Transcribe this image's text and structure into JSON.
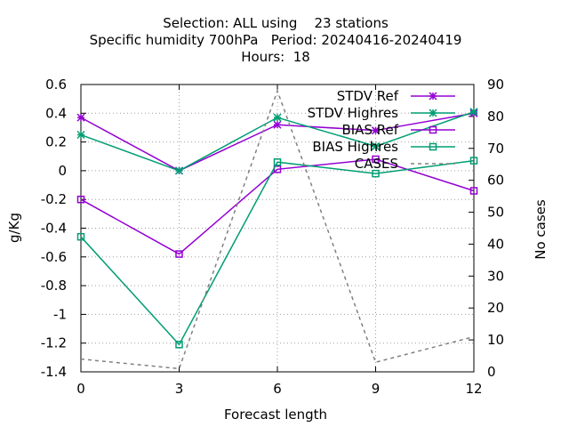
{
  "chart_data": {
    "type": "line",
    "title_lines": [
      "Selection: ALL using    23 stations",
      "Specific humidity 700hPa   Period: 20240416-20240419",
      "Hours:  18"
    ],
    "xlabel": "Forecast length",
    "ylabel": "g/Kg",
    "y2label": "No cases",
    "x": [
      0,
      3,
      6,
      9,
      12
    ],
    "x_ticks": [
      "0",
      "3",
      "6",
      "9",
      "12"
    ],
    "ylim": [
      -1.4,
      0.6
    ],
    "y_ticks": [
      "-1.4",
      "-1.2",
      "-1",
      "-0.8",
      "-0.6",
      "-0.4",
      "-0.2",
      "0",
      "0.2",
      "0.4",
      "0.6"
    ],
    "y2lim": [
      0,
      90
    ],
    "y2_ticks": [
      "0",
      "10",
      "20",
      "30",
      "40",
      "50",
      "60",
      "70",
      "80",
      "90"
    ],
    "grid": true,
    "legend_position": "top-right",
    "series": [
      {
        "name": "STDV Ref",
        "axis": "y1",
        "marker": "star",
        "color": "#9400d3",
        "values": [
          0.37,
          0.0,
          0.32,
          0.28,
          0.4
        ]
      },
      {
        "name": "STDV Highres",
        "axis": "y1",
        "marker": "star",
        "color": "#009e73",
        "values": [
          0.25,
          0.0,
          0.37,
          0.17,
          0.41
        ]
      },
      {
        "name": "BIAS Ref",
        "axis": "y1",
        "marker": "square",
        "color": "#9400d3",
        "values": [
          -0.2,
          -0.58,
          0.01,
          0.08,
          -0.14
        ]
      },
      {
        "name": "BIAS Highres",
        "axis": "y1",
        "marker": "square",
        "color": "#009e73",
        "values": [
          -0.46,
          -1.21,
          0.06,
          -0.02,
          0.07
        ]
      },
      {
        "name": "CASES",
        "axis": "y2",
        "marker": "none",
        "color": "#808080",
        "dashed": true,
        "values": [
          4,
          1,
          88,
          3,
          11
        ]
      }
    ]
  }
}
